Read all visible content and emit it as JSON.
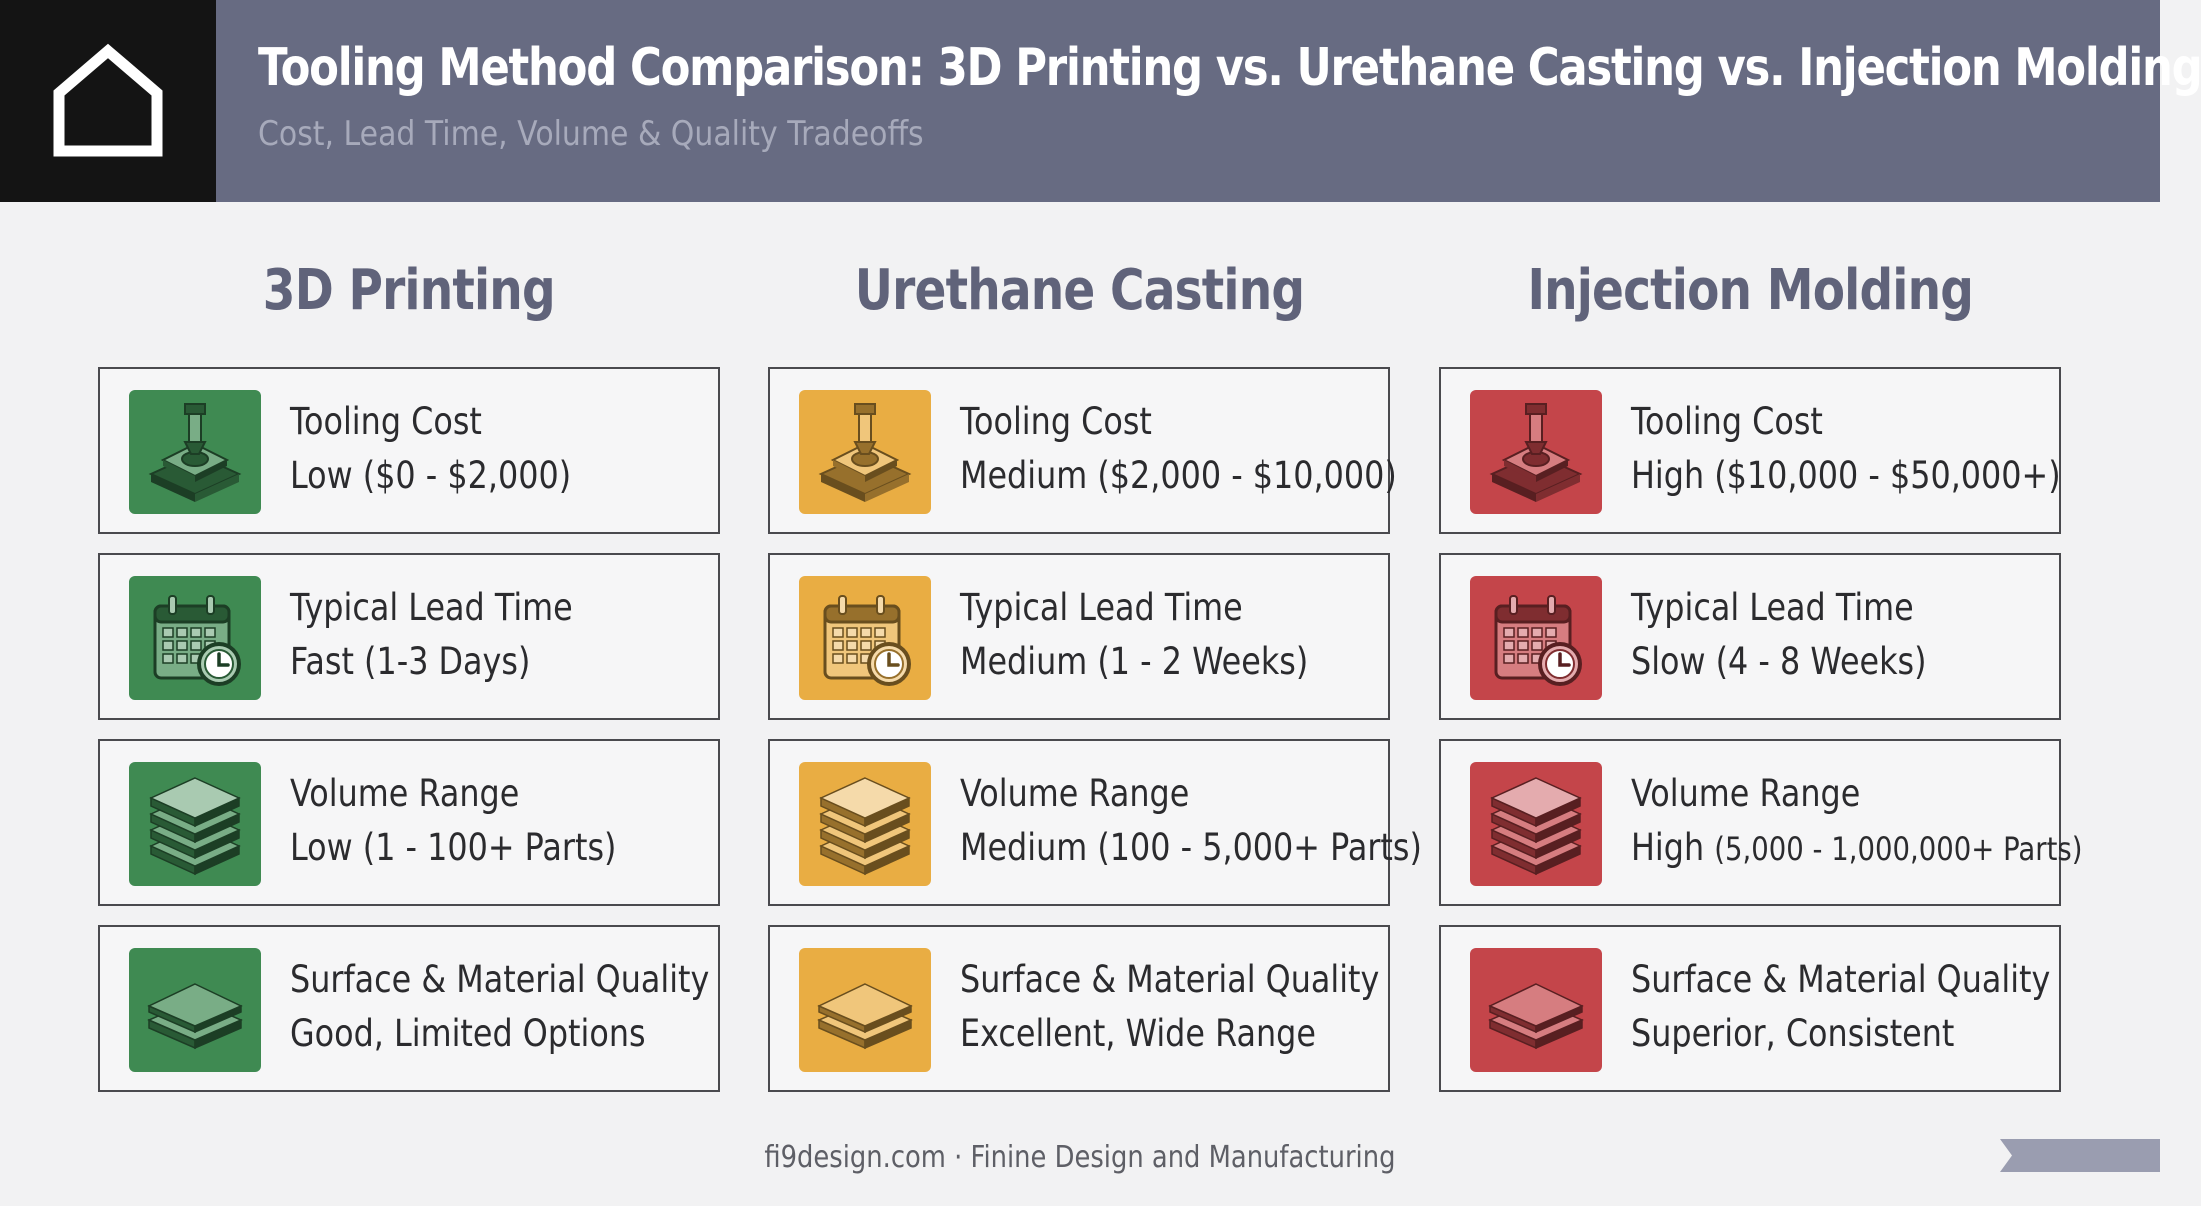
{
  "header": {
    "title": "Tooling Method Comparison: 3D Printing vs. Urethane Casting vs. Injection Molding",
    "subtitle": "Cost, Lead Time, Volume & Quality Tradeoffs",
    "logo_icon": "house-outline-icon"
  },
  "columns": [
    {
      "title": "3D Printing",
      "color": "#3f8a52",
      "rows": [
        {
          "label": "Tooling Cost",
          "value": "Low ($0 - $2,000)",
          "icon": "mold-press-icon"
        },
        {
          "label": "Typical Lead Time",
          "value": "Fast (1-3 Days)",
          "icon": "calendar-clock-icon"
        },
        {
          "label": "Volume Range",
          "value": "Low (1 - 100+ Parts)",
          "icon": "stacked-layers-icon"
        },
        {
          "label": "Surface & Material Quality",
          "value": "Good, Limited Options",
          "icon": "surface-layers-icon"
        }
      ]
    },
    {
      "title": "Urethane Casting",
      "color": "#e9ad43",
      "rows": [
        {
          "label": "Tooling Cost",
          "value": "Medium ($2,000 - $10,000)",
          "icon": "mold-press-icon"
        },
        {
          "label": "Typical Lead Time",
          "value": "Medium (1 - 2 Weeks)",
          "icon": "calendar-clock-icon"
        },
        {
          "label": "Volume Range",
          "value": "Medium (100 - 5,000+ Parts)",
          "icon": "stacked-layers-icon"
        },
        {
          "label": "Surface & Material Quality",
          "value": "Excellent, Wide Range",
          "icon": "surface-layers-icon"
        }
      ]
    },
    {
      "title": "Injection Molding",
      "color": "#c4454a",
      "rows": [
        {
          "label": "Tooling Cost",
          "value": "High ($10,000 - $50,000+)",
          "icon": "mold-press-icon"
        },
        {
          "label": "Typical Lead Time",
          "value": "Slow (4 - 8 Weeks)",
          "icon": "calendar-clock-icon"
        },
        {
          "label": "Volume Range",
          "value_prefix": "High ",
          "value": "(5,000 - 1,000,000+ Parts)",
          "icon": "stacked-layers-icon"
        },
        {
          "label": "Surface & Material Quality",
          "value": "Superior, Consistent",
          "icon": "surface-layers-icon"
        }
      ]
    }
  ],
  "footer": {
    "text": "fi9design.com · Finine Design and Manufacturing"
  }
}
